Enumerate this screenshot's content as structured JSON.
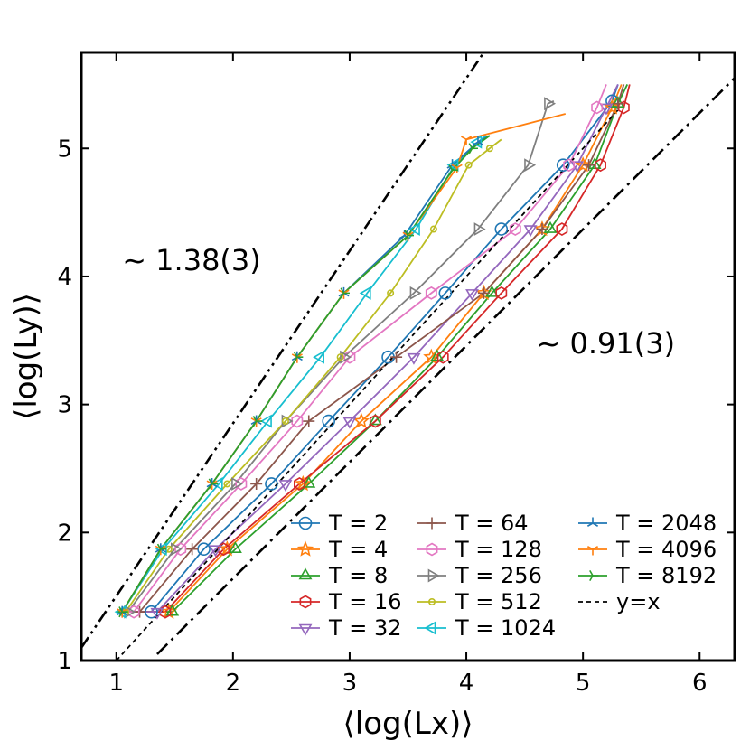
{
  "chart_data": {
    "type": "line",
    "title": "",
    "xlabel": "⟨log(Lx)⟩",
    "ylabel": "⟨log(Ly)⟩",
    "xlim": [
      0.7,
      6.3
    ],
    "ylim": [
      1.0,
      5.75
    ],
    "xticks": [
      1,
      2,
      3,
      4,
      5,
      6
    ],
    "yticks": [
      1,
      2,
      3,
      4,
      5
    ],
    "grid": false,
    "legend_position": "lower-right",
    "annotations": [
      {
        "text": "~ 1.38(3)",
        "x": 1.05,
        "y": 4.05
      },
      {
        "text": "~ 0.91(3)",
        "x": 4.6,
        "y": 3.4
      }
    ],
    "reference_lines": [
      {
        "name": "~1.38(3)",
        "style": "dash-dot-dot",
        "points": [
          [
            0.7,
            1.1
          ],
          [
            4.15,
            5.75
          ]
        ]
      },
      {
        "name": "~0.91(3)",
        "style": "dash-dot",
        "points": [
          [
            1.35,
            1.05
          ],
          [
            6.3,
            5.55
          ]
        ]
      }
    ],
    "series": [
      {
        "name": "T = 2",
        "marker": "circle",
        "color": "#1f77b4",
        "x": [
          1.05,
          1.3,
          1.75,
          2.33,
          2.82,
          3.33,
          3.82,
          4.3,
          4.83,
          5.25,
          5.3
        ],
        "y": [
          1.38,
          1.38,
          1.87,
          2.38,
          2.87,
          3.37,
          3.87,
          4.37,
          4.87,
          5.37,
          5.5
        ]
      },
      {
        "name": "T = 4",
        "marker": "star",
        "color": "#ff7f0e",
        "x": [
          1.1,
          1.45,
          1.95,
          2.6,
          3.1,
          3.7,
          4.15,
          4.65,
          5.0,
          5.25,
          5.33
        ],
        "y": [
          1.38,
          1.38,
          1.87,
          2.38,
          2.87,
          3.37,
          3.87,
          4.37,
          4.87,
          5.32,
          5.5
        ]
      },
      {
        "name": "T = 8",
        "marker": "triangle-up",
        "color": "#2ca02c",
        "x": [
          1.12,
          1.48,
          2.02,
          2.65,
          3.22,
          3.75,
          4.22,
          4.72,
          5.1,
          5.3,
          5.38
        ],
        "y": [
          1.38,
          1.38,
          1.87,
          2.38,
          2.87,
          3.37,
          3.87,
          4.37,
          4.87,
          5.35,
          5.5
        ]
      },
      {
        "name": "T = 16",
        "marker": "hexagon",
        "color": "#d62728",
        "x": [
          1.1,
          1.42,
          1.92,
          2.57,
          3.22,
          3.8,
          4.3,
          4.82,
          5.15,
          5.35,
          5.4
        ],
        "y": [
          1.38,
          1.38,
          1.87,
          2.38,
          2.87,
          3.37,
          3.87,
          4.37,
          4.87,
          5.32,
          5.5
        ]
      },
      {
        "name": "T = 32",
        "marker": "triangle-down",
        "color": "#9467bd",
        "x": [
          1.05,
          1.35,
          1.85,
          2.45,
          3.0,
          3.55,
          4.05,
          4.55,
          4.95,
          5.2,
          5.3
        ],
        "y": [
          1.38,
          1.38,
          1.87,
          2.38,
          2.87,
          3.37,
          3.87,
          4.37,
          4.87,
          5.32,
          5.5
        ]
      },
      {
        "name": "T = 64",
        "marker": "plus",
        "color": "#8c564b",
        "x": [
          1.05,
          1.2,
          1.65,
          2.2,
          2.65,
          3.4,
          4.15,
          4.65,
          5.05,
          5.3,
          5.35
        ],
        "y": [
          1.38,
          1.38,
          1.87,
          2.38,
          2.87,
          3.37,
          3.87,
          4.37,
          4.87,
          5.35,
          5.5
        ]
      },
      {
        "name": "T = 128",
        "marker": "hexagon",
        "color": "#e377c2",
        "x": [
          1.05,
          1.15,
          1.55,
          2.07,
          2.55,
          3.0,
          3.7,
          4.42,
          4.88,
          5.12,
          5.2
        ],
        "y": [
          1.38,
          1.38,
          1.87,
          2.38,
          2.87,
          3.37,
          3.87,
          4.37,
          4.87,
          5.32,
          5.5
        ]
      },
      {
        "name": "T = 256",
        "marker": "triangle-right",
        "color": "#7f7f7f",
        "x": [
          1.05,
          1.1,
          1.5,
          2.02,
          2.45,
          2.95,
          3.55,
          4.1,
          4.53,
          4.7,
          4.75
        ],
        "y": [
          1.38,
          1.38,
          1.87,
          2.38,
          2.87,
          3.37,
          3.87,
          4.37,
          4.87,
          5.35,
          5.37
        ]
      },
      {
        "name": "T = 512",
        "marker": "point",
        "color": "#bcbd22",
        "x": [
          1.02,
          1.08,
          1.45,
          1.95,
          2.45,
          2.92,
          3.35,
          3.72,
          4.02,
          4.2,
          4.3
        ],
        "y": [
          1.38,
          1.38,
          1.87,
          2.38,
          2.87,
          3.37,
          3.87,
          4.37,
          4.87,
          5.0,
          5.07
        ]
      },
      {
        "name": "T = 1024",
        "marker": "triangle-left",
        "color": "#17becf",
        "x": [
          1.02,
          1.05,
          1.4,
          1.88,
          2.3,
          2.75,
          3.15,
          3.57,
          3.9,
          4.1,
          4.17
        ],
        "y": [
          1.38,
          1.38,
          1.87,
          2.38,
          2.87,
          3.37,
          3.87,
          4.37,
          4.87,
          5.05,
          5.1
        ]
      },
      {
        "name": "T = 2048",
        "marker": "tri-down",
        "color": "#1f77b4",
        "x": [
          1.0,
          1.05,
          1.38,
          1.82,
          2.2,
          2.55,
          2.95,
          3.47,
          3.88,
          4.1,
          4.2
        ],
        "y": [
          1.38,
          1.38,
          1.87,
          2.38,
          2.87,
          3.37,
          3.87,
          4.32,
          4.87,
          5.05,
          5.1
        ]
      },
      {
        "name": "T = 4096",
        "marker": "tri-up",
        "color": "#ff7f0e",
        "x": [
          1.0,
          1.05,
          1.38,
          1.82,
          2.2,
          2.55,
          2.95,
          3.5,
          3.92,
          4.0,
          4.85
        ],
        "y": [
          1.38,
          1.38,
          1.87,
          2.38,
          2.87,
          3.37,
          3.87,
          4.32,
          4.85,
          5.07,
          5.27
        ]
      },
      {
        "name": "T = 8192",
        "marker": "tri-left",
        "color": "#2ca02c",
        "x": [
          1.0,
          1.05,
          1.38,
          1.82,
          2.2,
          2.55,
          2.95,
          3.5,
          3.88,
          4.05,
          4.2
        ],
        "y": [
          1.38,
          1.38,
          1.87,
          2.38,
          2.87,
          3.37,
          3.87,
          4.32,
          4.83,
          5.0,
          5.1
        ]
      },
      {
        "name": "y=x",
        "marker": "none",
        "color": "#000000",
        "style": "dashed",
        "x": [
          1.0,
          5.3
        ],
        "y": [
          1.0,
          5.3
        ]
      }
    ]
  }
}
